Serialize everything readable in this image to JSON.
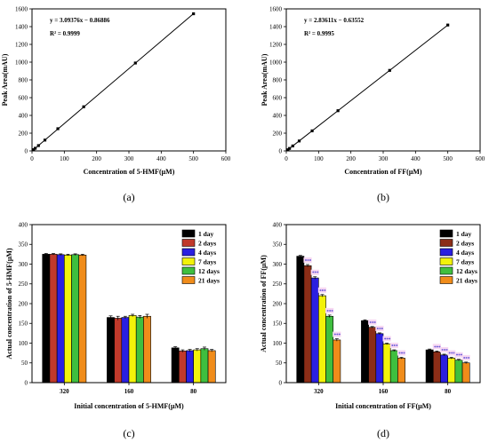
{
  "colors": {
    "axis": "#000000",
    "scatter_marker": "#000000",
    "fit_line": "#000000",
    "sig_label": "#3a2fd0",
    "sig_highlight": "#f7d8f2"
  },
  "chart_data": [
    {
      "id": "a",
      "panel_label": "(a)",
      "type": "scatter",
      "xlabel": "Concentration of 5-HMF(μM)",
      "ylabel": "Peak Area(mAU)",
      "xlim": [
        0,
        600
      ],
      "ylim": [
        0,
        1600
      ],
      "xticks": [
        0,
        100,
        200,
        300,
        400,
        500,
        600
      ],
      "yticks": [
        0,
        200,
        400,
        600,
        800,
        1000,
        1200,
        1400,
        1600
      ],
      "x": [
        5,
        10,
        20,
        40,
        80,
        160,
        320,
        500
      ],
      "y": [
        14,
        30,
        60,
        122,
        250,
        497,
        990,
        1545
      ],
      "fit": {
        "slope": 3.09376,
        "intercept": -0.86886,
        "x_range": [
          0,
          500
        ]
      },
      "equation": "y = 3.09376x − 0.86886",
      "r2": "R² = 0.9999"
    },
    {
      "id": "b",
      "panel_label": "(b)",
      "type": "scatter",
      "xlabel": "Concentration of FF(μM)",
      "ylabel": "Peak Area(mAU)",
      "xlim": [
        0,
        600
      ],
      "ylim": [
        0,
        1600
      ],
      "xticks": [
        0,
        100,
        200,
        300,
        400,
        500,
        600
      ],
      "yticks": [
        0,
        200,
        400,
        600,
        800,
        1000,
        1200,
        1400,
        1600
      ],
      "x": [
        5,
        10,
        20,
        40,
        80,
        160,
        320,
        500
      ],
      "y": [
        13,
        28,
        56,
        112,
        226,
        453,
        907,
        1418
      ],
      "fit": {
        "slope": 2.83611,
        "intercept": -0.63552,
        "x_range": [
          0,
          500
        ]
      },
      "equation": "y = 2.83611x − 0.63552",
      "r2": "R² = 0.9995"
    },
    {
      "id": "c",
      "panel_label": "(c)",
      "type": "bar",
      "xlabel": "Initial concentration of 5-HMF(μM)",
      "ylabel": "Actual concentration of 5-HMF(μM)",
      "ylim": [
        0,
        400
      ],
      "yticks": [
        0,
        50,
        100,
        150,
        200,
        250,
        300,
        350,
        400
      ],
      "categories": [
        "320",
        "160",
        "80"
      ],
      "series": [
        {
          "name": "1 day",
          "color": "#000000",
          "values": [
            325,
            165,
            88
          ],
          "sig": [
            "",
            "",
            ""
          ]
        },
        {
          "name": "2 days",
          "color": "#c0392b",
          "values": [
            325,
            163,
            80
          ],
          "sig": [
            "",
            "",
            ""
          ]
        },
        {
          "name": "4 days",
          "color": "#2a1fe0",
          "values": [
            324,
            165,
            81
          ],
          "sig": [
            "",
            "",
            ""
          ]
        },
        {
          "name": "7 days",
          "color": "#f2f20a",
          "values": [
            323,
            170,
            83
          ],
          "sig": [
            "",
            "",
            ""
          ]
        },
        {
          "name": "12 days",
          "color": "#3fbf3f",
          "values": [
            324,
            166,
            86
          ],
          "sig": [
            "",
            "",
            ""
          ]
        },
        {
          "name": "21 days",
          "color": "#f08c1a",
          "values": [
            323,
            168,
            81
          ],
          "sig": [
            "",
            "",
            ""
          ]
        }
      ],
      "errors": [
        [
          2,
          2,
          2,
          2,
          2,
          2
        ],
        [
          4,
          5,
          3,
          3,
          4,
          5
        ],
        [
          3,
          3,
          3,
          3,
          4,
          3
        ]
      ]
    },
    {
      "id": "d",
      "panel_label": "(d)",
      "type": "bar",
      "xlabel": "Initial concentration of FF(μM)",
      "ylabel": "Actual concentration of FF(μM)",
      "ylim": [
        0,
        400
      ],
      "yticks": [
        0,
        50,
        100,
        150,
        200,
        250,
        300,
        350,
        400
      ],
      "categories": [
        "320",
        "160",
        "80"
      ],
      "series": [
        {
          "name": "1 day",
          "color": "#000000",
          "values": [
            320,
            157,
            83
          ],
          "sig": [
            "",
            "",
            ""
          ]
        },
        {
          "name": "2 days",
          "color": "#8b2d17",
          "values": [
            296,
            140,
            78
          ],
          "sig": [
            "***",
            "***",
            "***"
          ]
        },
        {
          "name": "4 days",
          "color": "#2a1fe0",
          "values": [
            265,
            124,
            70
          ],
          "sig": [
            "***",
            "***",
            "***"
          ]
        },
        {
          "name": "7 days",
          "color": "#f2f20a",
          "values": [
            220,
            98,
            62
          ],
          "sig": [
            "***",
            "***",
            "***"
          ]
        },
        {
          "name": "12 days",
          "color": "#3fbf3f",
          "values": [
            168,
            81,
            57
          ],
          "sig": [
            "***",
            "***",
            "***"
          ]
        },
        {
          "name": "21 days",
          "color": "#f08c1a",
          "values": [
            108,
            62,
            50
          ],
          "sig": [
            "***",
            "***",
            "***"
          ]
        }
      ],
      "errors": [
        [
          2,
          3,
          3,
          3,
          3,
          3
        ],
        [
          2,
          2,
          2,
          2,
          2,
          2
        ],
        [
          2,
          2,
          2,
          2,
          2,
          2
        ]
      ]
    }
  ]
}
